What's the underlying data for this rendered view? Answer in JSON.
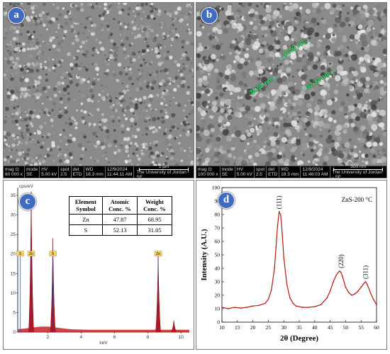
{
  "panel_a": {
    "label": "a",
    "infobar": {
      "mag_label": "mag ⊡",
      "mag_value": "60 000 x",
      "mode_label": "mode",
      "mode_value": "SE",
      "hv_label": "HV",
      "hv_value": "5.00 kV",
      "spot_label": "spot",
      "spot_value": "2.5",
      "det_label": "det",
      "det_value": "ETD",
      "wd_label": "WD",
      "wd_value": "18.3 mm",
      "date_value": "12/9/2024",
      "time_value": "11:44:11 AM",
      "scale_label": "1 µm",
      "institution": "The University of Jordan - SE"
    }
  },
  "panel_b": {
    "label": "b",
    "measurements": [
      "43.52 nm",
      "39.52 nm",
      "37.32 nm"
    ],
    "infobar": {
      "mag_label": "mag ⊡",
      "mag_value": "100 000 x",
      "mode_label": "mode",
      "mode_value": "SE",
      "hv_label": "HV",
      "hv_value": "5.00 kV",
      "spot_label": "spot",
      "spot_value": "2.5",
      "det_label": "det",
      "det_value": "ETD",
      "wd_label": "WD",
      "wd_value": "18.3 mm",
      "date_value": "12/9/2024",
      "time_value": "11:46:03 AM",
      "scale_label": "500 nm",
      "institution": "The University of Jordan - SE"
    }
  },
  "panel_c": {
    "label": "c",
    "table": {
      "headers": [
        "Element Symbol",
        "Atomic Conc. %",
        "Weight Conc. %"
      ],
      "rows": [
        [
          "Zn",
          "47.87",
          "68.95"
        ],
        [
          "S",
          "52.13",
          "31.05"
        ]
      ]
    }
  },
  "panel_d": {
    "label": "d"
  },
  "chart_data": [
    {
      "type": "bar",
      "title": "",
      "ylabel": "cps/eV",
      "xlabel": "keV",
      "xlim": [
        0.2,
        10.5
      ],
      "ylim": [
        0,
        37
      ],
      "x_ticks": [
        2,
        4,
        6,
        8,
        10
      ],
      "y_ticks": [
        0,
        5,
        10,
        15,
        20,
        25,
        30,
        35
      ],
      "peaks": [
        {
          "x": 1.01,
          "y": 36,
          "label": "Zn"
        },
        {
          "x": 2.31,
          "y": 24,
          "label": "S"
        },
        {
          "x": 8.63,
          "y": 20,
          "label": "Zn"
        },
        {
          "x": 9.57,
          "y": 3,
          "label": ""
        }
      ],
      "peak_labels": [
        {
          "x": 0.35,
          "label": "S"
        },
        {
          "x": 1.01,
          "label": "Zn"
        },
        {
          "x": 2.31,
          "label": "S"
        },
        {
          "x": 8.63,
          "label": "Zn"
        }
      ],
      "fill_color": "#c0141a",
      "line_color": "#1b3c9a"
    },
    {
      "type": "line",
      "title": "ZnS-200 °C",
      "xlabel": "2θ (Degree)",
      "ylabel": "Intensity (A.U.)",
      "xlim": [
        10,
        60
      ],
      "ylim": [
        0,
        100
      ],
      "x_ticks": [
        10,
        15,
        20,
        25,
        30,
        35,
        40,
        45,
        50,
        55,
        60
      ],
      "y_ticks": [
        0,
        10,
        20,
        30,
        40,
        50,
        60,
        70,
        80,
        90,
        100
      ],
      "series": [
        {
          "color": "#b01a10",
          "x": [
            10,
            12,
            14,
            16,
            18,
            20,
            22,
            24,
            25,
            26,
            27,
            27.5,
            28,
            28.5,
            29,
            29.5,
            30,
            31,
            32,
            33,
            34,
            36,
            38,
            40,
            42,
            44,
            45,
            46,
            47,
            48,
            48.5,
            49,
            50,
            51,
            52,
            53,
            54,
            55,
            56,
            56.5,
            57,
            58,
            59,
            60
          ],
          "y": [
            11,
            10,
            11,
            10.5,
            11,
            12,
            12.5,
            14,
            17,
            24,
            40,
            56,
            72,
            82,
            80,
            66,
            48,
            28,
            18,
            14,
            12,
            11,
            11,
            11.5,
            13,
            18,
            23,
            30,
            35,
            38,
            37,
            34,
            26,
            22,
            20,
            21,
            23,
            26,
            29,
            30,
            28,
            22,
            17,
            13
          ]
        }
      ],
      "annotations": [
        {
          "x": 28.5,
          "label": "(111)"
        },
        {
          "x": 48.5,
          "label": "(220)"
        },
        {
          "x": 56.5,
          "label": "(311)"
        }
      ]
    }
  ]
}
